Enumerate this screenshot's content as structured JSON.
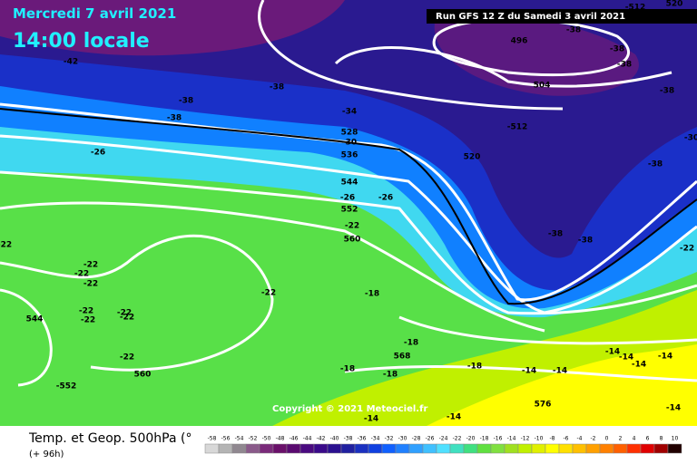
{
  "header": {
    "date": "Mercredi 7 avril 2021",
    "time": "14:00 locale",
    "run": "Run GFS 12 Z du Samedi 3 avril 2021"
  },
  "copyright": "Copyright © 2021 Meteociel.fr",
  "footer": {
    "title": "Temp. et Geop. 500hPa (°",
    "lead": "(+ 96h)"
  },
  "scale": {
    "labels": [
      -58,
      -56,
      -54,
      -52,
      -50,
      -48,
      -46,
      -44,
      -42,
      -40,
      -38,
      -36,
      -34,
      -32,
      -30,
      -28,
      -26,
      -24,
      -22,
      -20,
      -18,
      -16,
      -14,
      -12,
      -10,
      -8,
      -6,
      -4,
      -2,
      0,
      2,
      4,
      6,
      8,
      10
    ],
    "colors": [
      "#d8d8d8",
      "#b4b4b4",
      "#908890",
      "#8a5a8a",
      "#7a2a7a",
      "#6a106a",
      "#5a0a70",
      "#4a0a80",
      "#3a0a8a",
      "#2a1090",
      "#2020a0",
      "#1a30c0",
      "#1040e0",
      "#1060ff",
      "#2080ff",
      "#30a0ff",
      "#40c0ff",
      "#50e0ff",
      "#40e0c0",
      "#40e080",
      "#60e040",
      "#80e040",
      "#a0e020",
      "#c0f000",
      "#e0f000",
      "#ffff00",
      "#ffe000",
      "#ffc000",
      "#ffa000",
      "#ff8000",
      "#ff6000",
      "#ff3000",
      "#e00000",
      "#a00000",
      "#200000"
    ]
  },
  "map_labels": [
    -42,
    -38,
    -38,
    -38,
    -34,
    528,
    -30,
    536,
    -26,
    544,
    -26,
    552,
    -22,
    560,
    -26,
    496,
    -38,
    -38,
    -38,
    504,
    -38,
    -512,
    520,
    -38,
    -38,
    -38,
    -22,
    -22,
    -22,
    -22,
    -22,
    -22,
    -18,
    544,
    -22,
    -22,
    -22,
    -22,
    -22,
    560,
    -552,
    -18,
    568,
    -18,
    -18,
    -18,
    -14,
    -14,
    -14,
    -14,
    -14,
    -14,
    576,
    -14,
    -14,
    -14,
    -512,
    520,
    -30
  ]
}
